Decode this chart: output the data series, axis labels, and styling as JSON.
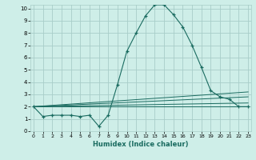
{
  "xlabel": "Humidex (Indice chaleur)",
  "bg_color": "#ceeee8",
  "grid_color": "#a8cdc8",
  "line_color": "#1a6b60",
  "x_main": [
    0,
    1,
    2,
    3,
    4,
    5,
    6,
    7,
    8,
    9,
    10,
    11,
    12,
    13,
    14,
    15,
    16,
    17,
    18,
    19,
    20,
    21,
    22,
    23
  ],
  "y_main": [
    2.0,
    1.2,
    1.3,
    1.3,
    1.3,
    1.2,
    1.3,
    0.4,
    1.3,
    3.8,
    6.5,
    8.0,
    9.4,
    10.3,
    10.3,
    9.5,
    8.5,
    7.0,
    5.2,
    3.3,
    2.8,
    2.6,
    2.0,
    2.0
  ],
  "fan_lines": [
    {
      "x": [
        0,
        23
      ],
      "y": [
        2.0,
        2.0
      ]
    },
    {
      "x": [
        0,
        23
      ],
      "y": [
        2.0,
        2.3
      ]
    },
    {
      "x": [
        0,
        23
      ],
      "y": [
        2.0,
        2.8
      ]
    },
    {
      "x": [
        0,
        23
      ],
      "y": [
        2.0,
        3.2
      ]
    }
  ],
  "xlim": [
    0,
    23
  ],
  "ylim": [
    0,
    10
  ],
  "ytick_labels": [
    "0",
    "1",
    "2",
    "3",
    "4",
    "5",
    "6",
    "7",
    "8",
    "9",
    "10"
  ],
  "ytick_vals": [
    0,
    1,
    2,
    3,
    4,
    5,
    6,
    7,
    8,
    9,
    10
  ],
  "xtick_vals": [
    0,
    1,
    2,
    3,
    4,
    5,
    6,
    7,
    8,
    9,
    10,
    11,
    12,
    13,
    14,
    15,
    16,
    17,
    18,
    19,
    20,
    21,
    22,
    23
  ],
  "xtick_labels": [
    "0",
    "1",
    "2",
    "3",
    "4",
    "5",
    "6",
    "7",
    "8",
    "9",
    "10",
    "11",
    "12",
    "13",
    "14",
    "15",
    "16",
    "17",
    "18",
    "19",
    "20",
    "21",
    "22",
    "23"
  ]
}
